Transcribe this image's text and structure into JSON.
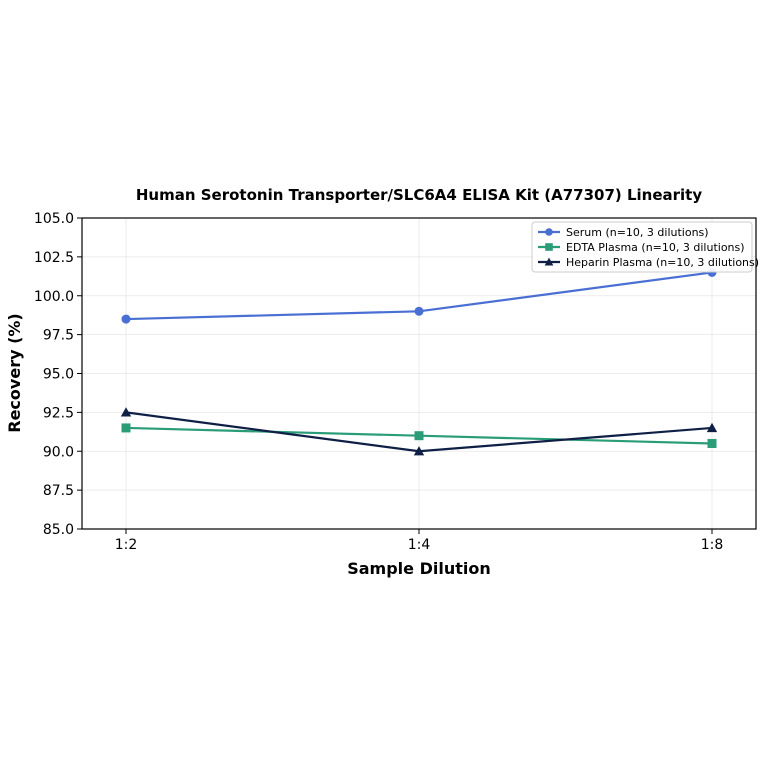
{
  "chart_data": {
    "type": "line",
    "title": "Human Serotonin Transporter/SLC6A4 ELISA Kit (A77307) Linearity",
    "xlabel": "Sample Dilution",
    "ylabel": "Recovery (%)",
    "categories": [
      "1:2",
      "1:4",
      "1:8"
    ],
    "ylim": [
      85.0,
      105.0
    ],
    "yticks": [
      "85.0",
      "87.5",
      "90.0",
      "92.5",
      "95.0",
      "97.5",
      "100.0",
      "102.5",
      "105.0"
    ],
    "grid": true,
    "legend_position": "top-right",
    "series": [
      {
        "name": "Serum (n=10, 3 dilutions)",
        "values": [
          98.5,
          99.0,
          101.5
        ],
        "color": "#4a6fd4",
        "marker": "circle"
      },
      {
        "name": "EDTA Plasma (n=10, 3 dilutions)",
        "values": [
          91.5,
          91.0,
          90.5
        ],
        "color": "#2a9d78",
        "marker": "square"
      },
      {
        "name": "Heparin Plasma (n=10, 3 dilutions)",
        "values": [
          92.5,
          90.0,
          91.5
        ],
        "color": "#0f1f45",
        "marker": "triangle"
      }
    ]
  }
}
